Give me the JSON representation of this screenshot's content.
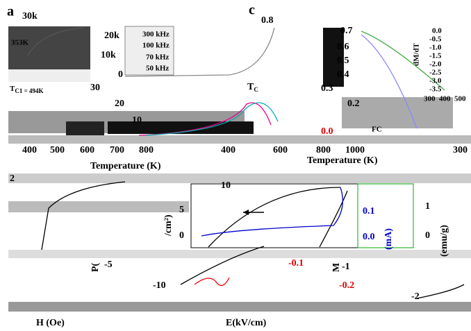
{
  "panel_a": {
    "letter": "a",
    "y_top": "30k",
    "marker": "353K",
    "tc_symbol": "T",
    "tc_text": "C1 = 494K",
    "inset_yticks": [
      "20k",
      "10k",
      "0"
    ],
    "legend": [
      "300 kHz",
      "100 kHz",
      "70 kHz",
      "50 kHz"
    ],
    "yticks": [
      "30",
      "20",
      "10"
    ],
    "tc_label": "T",
    "tc_sub": "C",
    "xticks": [
      "400",
      "500",
      "600",
      "700",
      "800"
    ],
    "xlabel": "Temperature (K)"
  },
  "panel_c": {
    "letter": "c",
    "y_top": "0.8",
    "yticks": [
      "0.7",
      "0.6",
      "0.5",
      "0.4",
      "0.3",
      "0.2",
      "0.0"
    ],
    "fc": "FC",
    "inset_yticks": [
      "0.0",
      "-0.5",
      "-1.0",
      "-1.5",
      "-2.0",
      "-2.5",
      "-3.0",
      "-3.5"
    ],
    "inset_ylabel": "dM/dT",
    "inset_xticks": [
      "300",
      "400",
      "500"
    ],
    "xticks": [
      "400",
      "600",
      "800",
      "1000"
    ],
    "xtick_right": "300",
    "xlabel": "Temperature (K)"
  },
  "panel_b": {
    "ytick": "2",
    "xlabel": "H (Oe)"
  },
  "panel_d": {
    "yticks": [
      "10",
      "5",
      "0",
      "-5",
      "-10"
    ],
    "ylabel_start": "P(",
    "ylabel_end": "/cm²)",
    "current_ticks": [
      "0.1",
      "0.0",
      "-0.1",
      "-0.2"
    ],
    "current_label": "(mA)",
    "m_ticks": [
      "1",
      "0",
      "-1",
      "-2"
    ],
    "m_symbol": "M",
    "m_label": "(emu/g)",
    "xlabel": "E(kV/cm)"
  }
}
